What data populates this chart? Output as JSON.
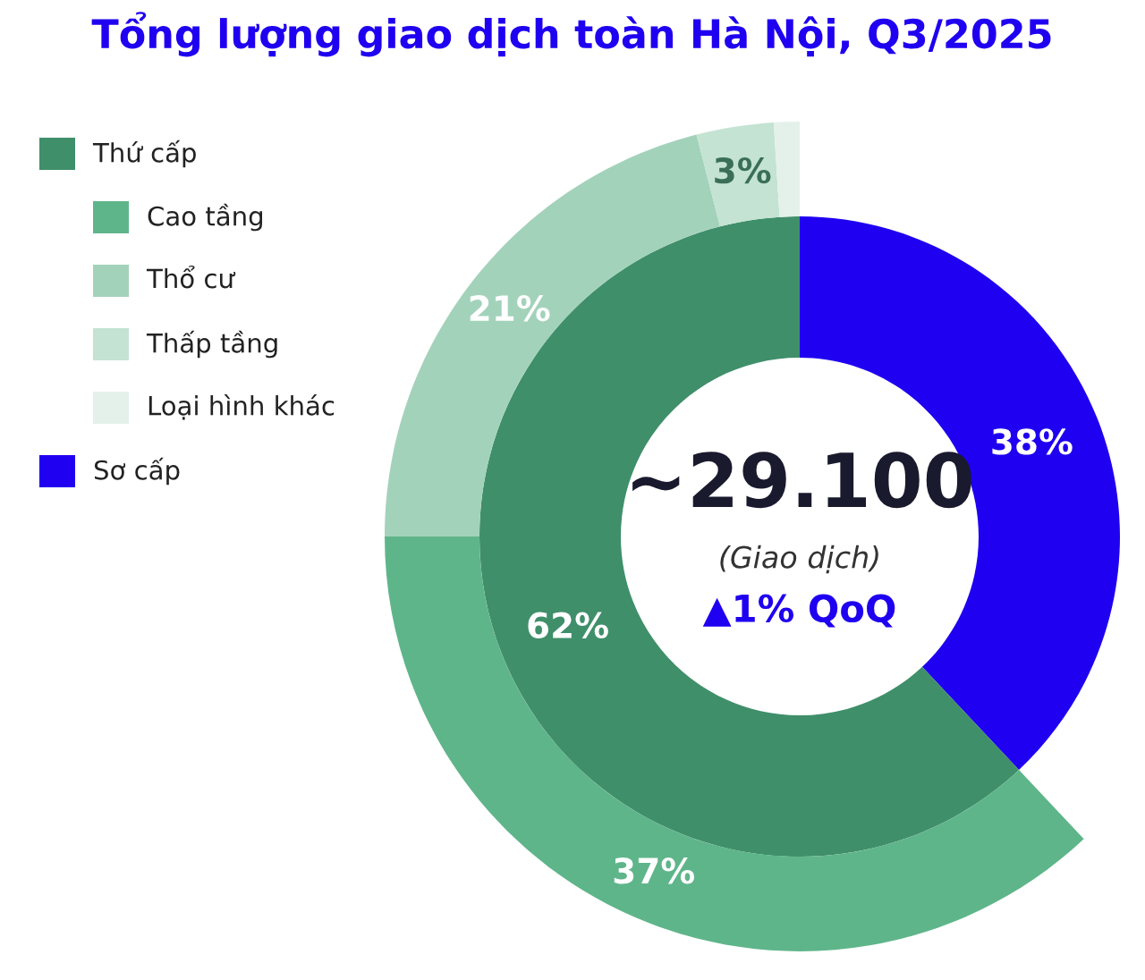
{
  "chart_data": {
    "type": "donut",
    "title": "Tổng lượng giao dịch toàn Hà Nội, Q3/2025",
    "categories": [
      "Sơ cấp",
      "Cao tầng",
      "Thổ cư",
      "Thấp tầng",
      "Loại hình khác",
      "Thứ cấp"
    ],
    "colors": [
      "#1f00f0",
      "#5fb58a",
      "#a3d2bb",
      "#c4e3d3",
      "#e3f1ea",
      "#3f8f6a"
    ],
    "series": [
      {
        "values": [
          38,
          null,
          null,
          null,
          null,
          62
        ],
        "value_labels": [
          "38%",
          null,
          null,
          null,
          null,
          "62%"
        ]
      },
      {
        "values": [
          null,
          37,
          21,
          3,
          1,
          null
        ],
        "value_labels": [
          null,
          "37%",
          "21%",
          "3%",
          null,
          null
        ]
      }
    ],
    "legend": "left",
    "annotations": [
      "~29.100",
      "(Giao dịch)",
      "▲1% QoQ"
    ]
  }
}
